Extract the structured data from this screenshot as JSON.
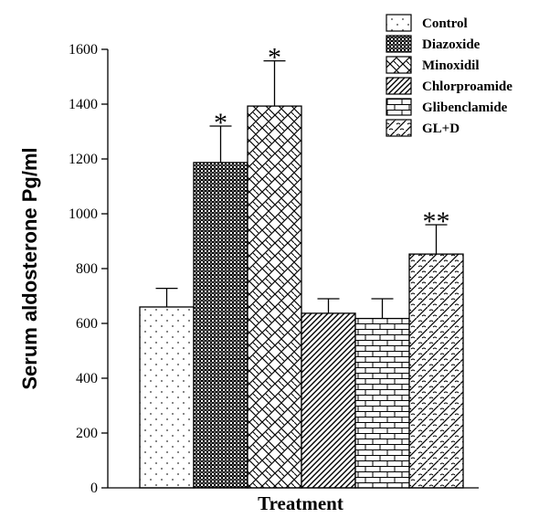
{
  "chart_data": {
    "type": "bar",
    "xlabel": "Treatment",
    "ylabel": "Serum aldosterone Pg/ml",
    "ylim": [
      0,
      1600
    ],
    "yticks": [
      0,
      200,
      400,
      600,
      800,
      1000,
      1200,
      1400,
      1600
    ],
    "legend_position": "top-right",
    "grid": false,
    "series": [
      {
        "name": "Control",
        "value": 660,
        "error": 68,
        "significance": "",
        "pattern": "dots"
      },
      {
        "name": "Diazoxide",
        "value": 1187,
        "error": 133,
        "significance": "*",
        "pattern": "checker"
      },
      {
        "name": "Minoxidil",
        "value": 1393,
        "error": 165,
        "significance": "*",
        "pattern": "zigzag"
      },
      {
        "name": "Chlorproamide",
        "value": 637,
        "error": 53,
        "significance": "",
        "pattern": "diagonal"
      },
      {
        "name": "Glibenclamide",
        "value": 618,
        "error": 72,
        "significance": "",
        "pattern": "brick"
      },
      {
        "name": "GL+D",
        "value": 853,
        "error": 107,
        "significance": "**",
        "pattern": "weave"
      }
    ]
  }
}
